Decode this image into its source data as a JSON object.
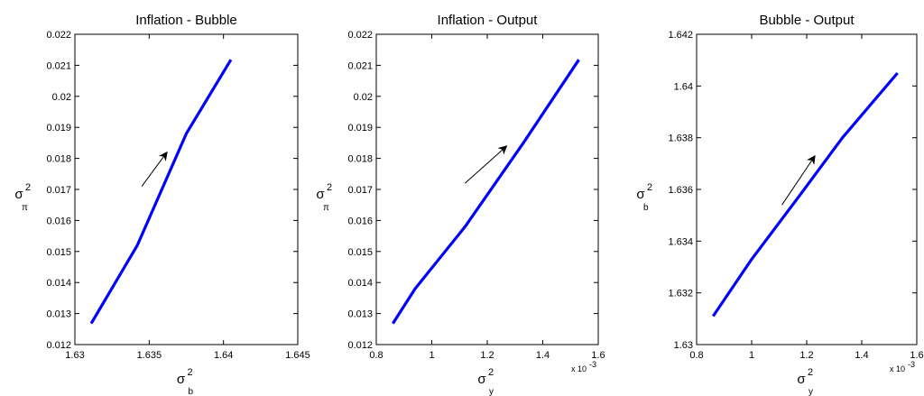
{
  "chart_data": [
    {
      "type": "line",
      "title": "Inflation - Bubble",
      "xlabel": {
        "symbol": "σ",
        "sup": "2",
        "sub": "b"
      },
      "ylabel": {
        "symbol": "σ",
        "sup": "2",
        "sub": "π"
      },
      "xlim": [
        1.63,
        1.645
      ],
      "ylim": [
        0.012,
        0.022
      ],
      "xticks": [
        1.63,
        1.635,
        1.64,
        1.645
      ],
      "xtick_labels": [
        "1.63",
        "1.635",
        "1.64",
        "1.645"
      ],
      "yticks": [
        0.012,
        0.013,
        0.014,
        0.015,
        0.016,
        0.017,
        0.018,
        0.019,
        0.02,
        0.021,
        0.022
      ],
      "ytick_labels": [
        "0.012",
        "0.013",
        "0.014",
        "0.015",
        "0.016",
        "0.017",
        "0.018",
        "0.019",
        "0.02",
        "0.021",
        "0.022"
      ],
      "x_exponent_label": "",
      "grid": false,
      "series": [
        {
          "color": "#0000ff",
          "x": [
            1.6311,
            1.6342,
            1.6375,
            1.6405
          ],
          "y": [
            0.01268,
            0.0152,
            0.0188,
            0.02118
          ]
        }
      ],
      "arrow": {
        "from": [
          1.6345,
          0.0171
        ],
        "to": [
          1.6362,
          0.0182
        ]
      }
    },
    {
      "type": "line",
      "title": "Inflation - Output",
      "xlabel": {
        "symbol": "σ",
        "sup": "2",
        "sub": "y"
      },
      "ylabel": {
        "symbol": "σ",
        "sup": "2",
        "sub": "π"
      },
      "xlim": [
        0.8,
        1.6
      ],
      "ylim": [
        0.012,
        0.022
      ],
      "xticks": [
        0.8,
        1.0,
        1.2,
        1.4,
        1.6
      ],
      "xtick_labels": [
        "0.8",
        "1",
        "1.2",
        "1.4",
        "1.6"
      ],
      "yticks": [
        0.012,
        0.013,
        0.014,
        0.015,
        0.016,
        0.017,
        0.018,
        0.019,
        0.02,
        0.021,
        0.022
      ],
      "ytick_labels": [
        "0.012",
        "0.013",
        "0.014",
        "0.015",
        "0.016",
        "0.017",
        "0.018",
        "0.019",
        "0.02",
        "0.021",
        "0.022"
      ],
      "x_exponent_label": {
        "base": "x 10",
        "power": "-3"
      },
      "grid": false,
      "series": [
        {
          "color": "#0000ff",
          "x": [
            0.86,
            0.94,
            1.12,
            1.33,
            1.53
          ],
          "y": [
            0.01268,
            0.0138,
            0.0158,
            0.0185,
            0.02118
          ]
        }
      ],
      "arrow": {
        "from": [
          1.12,
          0.0172
        ],
        "to": [
          1.27,
          0.0184
        ]
      }
    },
    {
      "type": "line",
      "title": "Bubble - Output",
      "xlabel": {
        "symbol": "σ",
        "sup": "2",
        "sub": "y"
      },
      "ylabel": {
        "symbol": "σ",
        "sup": "2",
        "sub": "b"
      },
      "xlim": [
        0.8,
        1.6
      ],
      "ylim": [
        1.63,
        1.642
      ],
      "xticks": [
        0.8,
        1.0,
        1.2,
        1.4,
        1.6
      ],
      "xtick_labels": [
        "0.8",
        "1",
        "1.2",
        "1.4",
        "1.6"
      ],
      "yticks": [
        1.63,
        1.632,
        1.634,
        1.636,
        1.638,
        1.64,
        1.642
      ],
      "ytick_labels": [
        "1.63",
        "1.632",
        "1.634",
        "1.636",
        "1.638",
        "1.64",
        "1.642"
      ],
      "x_exponent_label": {
        "base": "x 10",
        "power": "-3"
      },
      "grid": false,
      "series": [
        {
          "color": "#0000ff",
          "x": [
            0.86,
            1.0,
            1.17,
            1.33,
            1.53
          ],
          "y": [
            1.6311,
            1.6333,
            1.6357,
            1.638,
            1.6405
          ]
        }
      ],
      "arrow": {
        "from": [
          1.11,
          1.6354
        ],
        "to": [
          1.23,
          1.6373
        ]
      }
    }
  ]
}
